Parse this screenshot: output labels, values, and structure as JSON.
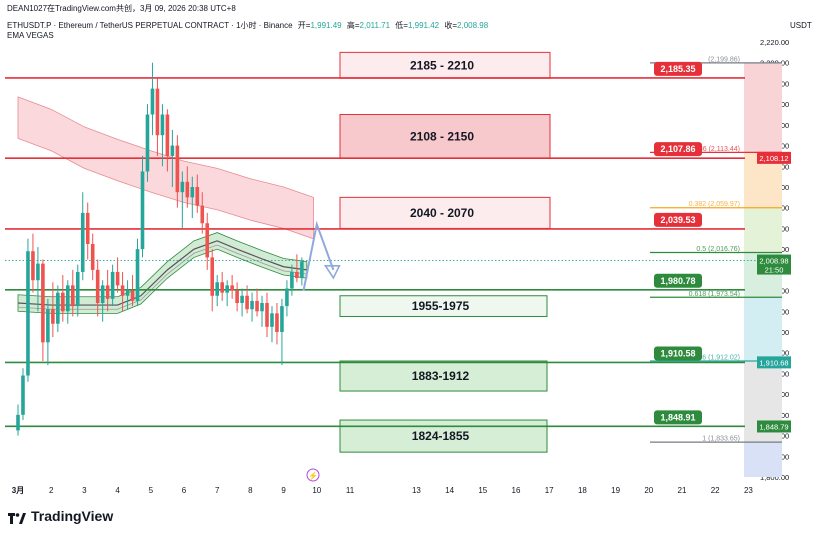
{
  "header": {
    "byline": "DEAN1027在TradingView.com共创，3月 09, 2026 20:38 UTC+8",
    "symbol": "ETHUSDT.P · Ethereum / TetherUS PERPETUAL CONTRACT · 1小时 · Binance",
    "ohlc": [
      {
        "label": "开=",
        "value": "1,991.49"
      },
      {
        "label": "高=",
        "value": "2,011.71"
      },
      {
        "label": "低=",
        "value": "1,991.42"
      },
      {
        "label": "收=",
        "value": "2,008.98"
      }
    ],
    "indicator": "EMA VEGAS"
  },
  "footer": {
    "brand": "TradingView"
  },
  "colors": {
    "red": "#e5303a",
    "green": "#2e8b3d",
    "up": "#26a69a",
    "down": "#ef5350",
    "red_zone_fill": "#fde2e4",
    "green_zone_fill": "#eaf6ea",
    "arrow": "#8fa9dd"
  },
  "chart_data": {
    "type": "candlestick",
    "currency": "USDT",
    "ylim": [
      1800,
      2220
    ],
    "y_ticks": [
      "2,220.00",
      "2,200.00",
      "2,180.00",
      "2,160.00",
      "2,140.00",
      "2,120.00",
      "2,100.00",
      "2,080.00",
      "2,060.00",
      "2,040.00",
      "2,020.00",
      "2,000.00",
      "1,980.00",
      "1,960.00",
      "1,940.00",
      "1,920.00",
      "1,900.00",
      "1,880.00",
      "1,860.00",
      "1,840.00",
      "1,820.00",
      "1,800.00"
    ],
    "x_ticks": [
      {
        "label": "3月",
        "day": 1
      },
      {
        "label": "2",
        "day": 2
      },
      {
        "label": "3",
        "day": 3
      },
      {
        "label": "4",
        "day": 4
      },
      {
        "label": "5",
        "day": 5
      },
      {
        "label": "6",
        "day": 6
      },
      {
        "label": "7",
        "day": 7
      },
      {
        "label": "8",
        "day": 8
      },
      {
        "label": "9",
        "day": 9
      },
      {
        "label": "10",
        "day": 10
      },
      {
        "label": "11",
        "day": 11
      },
      {
        "label": "13",
        "day": 13
      },
      {
        "label": "14",
        "day": 14
      },
      {
        "label": "15",
        "day": 15
      },
      {
        "label": "16",
        "day": 16
      },
      {
        "label": "17",
        "day": 17
      },
      {
        "label": "18",
        "day": 18
      },
      {
        "label": "19",
        "day": 19
      },
      {
        "label": "20",
        "day": 20
      },
      {
        "label": "21",
        "day": 21
      },
      {
        "label": "22",
        "day": 22
      },
      {
        "label": "23",
        "day": 23
      }
    ],
    "price_lines": [
      {
        "value": 2185.35,
        "label": "2,185.35",
        "color": "red"
      },
      {
        "value": 2107.86,
        "label": "2,107.86",
        "color": "red"
      },
      {
        "value": 2039.53,
        "label": "2,039.53",
        "color": "red"
      },
      {
        "value": 1980.78,
        "label": "1,980.78",
        "color": "green"
      },
      {
        "value": 1910.58,
        "label": "1,910.58",
        "color": "green"
      },
      {
        "value": 1848.91,
        "label": "1,848.91",
        "color": "green"
      }
    ],
    "zones": [
      {
        "label": "2185 - 2210",
        "low": 2185,
        "high": 2210,
        "kind": "resistance",
        "strong": false
      },
      {
        "label": "2108 - 2150",
        "low": 2108,
        "high": 2150,
        "kind": "resistance",
        "strong": true
      },
      {
        "label": "2040 - 2070",
        "low": 2040,
        "high": 2070,
        "kind": "resistance",
        "strong": false
      },
      {
        "label": "1955-1975",
        "low": 1955,
        "high": 1975,
        "kind": "support",
        "strong": false
      },
      {
        "label": "1883-1912",
        "low": 1883,
        "high": 1912,
        "kind": "support",
        "strong": true
      },
      {
        "label": "1824-1855",
        "low": 1824,
        "high": 1855,
        "kind": "support",
        "strong": true
      }
    ],
    "fib_levels": [
      {
        "label": "(2,199.86)",
        "value": 2199.86,
        "color": "#787b86"
      },
      {
        "label": "0.236 (2,113.44)",
        "value": 2113.44,
        "color": "#e5303a"
      },
      {
        "label": "0.382 (2,059.97)",
        "value": 2059.97,
        "color": "#f5a623"
      },
      {
        "label": "0.5 (2,016.76)",
        "value": 2016.76,
        "color": "#2e8b3d"
      },
      {
        "label": "0.618 (1,973.54)",
        "value": 1973.54,
        "color": "#2e8b3d"
      },
      {
        "label": "0.786 (1,912.02)",
        "value": 1912.02,
        "color": "#26a69a"
      },
      {
        "label": "1 (1,833.65)",
        "value": 1833.65,
        "color": "#787b86"
      }
    ],
    "right_tags": [
      {
        "label": "2,108.12",
        "value": 2108.12,
        "color": "#e5303a"
      },
      {
        "label": "2,008.98",
        "value": 2008.98,
        "color": "#2e8b3d",
        "sub": "21:50"
      },
      {
        "label": "1,910.68",
        "value": 1910.68,
        "color": "#26a69a"
      },
      {
        "label": "1,848.79",
        "value": 1848.79,
        "color": "#2e8b3d"
      }
    ],
    "last_price": 2008.98,
    "candles": [
      [
        1.0,
        1845,
        1870,
        1840,
        1860
      ],
      [
        1.15,
        1860,
        1905,
        1855,
        1898
      ],
      [
        1.3,
        1898,
        2030,
        1892,
        2018
      ],
      [
        1.45,
        2018,
        2035,
        1978,
        1990
      ],
      [
        1.6,
        1990,
        2022,
        1960,
        2006
      ],
      [
        1.75,
        2006,
        2010,
        1912,
        1930
      ],
      [
        1.9,
        1930,
        1972,
        1908,
        1962
      ],
      [
        2.05,
        1962,
        1988,
        1935,
        1948
      ],
      [
        2.2,
        1948,
        1985,
        1940,
        1978
      ],
      [
        2.35,
        1978,
        1995,
        1950,
        1960
      ],
      [
        2.5,
        1960,
        1990,
        1948,
        1985
      ],
      [
        2.65,
        1985,
        2000,
        1955,
        1965
      ],
      [
        2.8,
        1965,
        2005,
        1955,
        1998
      ],
      [
        2.95,
        1998,
        2075,
        1990,
        2055
      ],
      [
        3.1,
        2055,
        2065,
        2010,
        2025
      ],
      [
        3.25,
        2025,
        2035,
        1990,
        2000
      ],
      [
        3.4,
        2000,
        2010,
        1955,
        1968
      ],
      [
        3.55,
        1968,
        1990,
        1950,
        1985
      ],
      [
        3.7,
        1985,
        2000,
        1960,
        1972
      ],
      [
        3.85,
        1972,
        2005,
        1965,
        1998
      ],
      [
        4.0,
        1998,
        2012,
        1978,
        1985
      ],
      [
        4.15,
        1985,
        1998,
        1960,
        1975
      ],
      [
        4.3,
        1975,
        1990,
        1962,
        1980
      ],
      [
        4.45,
        1980,
        1995,
        1965,
        1970
      ],
      [
        4.6,
        1970,
        2030,
        1965,
        2020
      ],
      [
        4.75,
        2020,
        2110,
        2012,
        2095
      ],
      [
        4.9,
        2095,
        2160,
        2085,
        2150
      ],
      [
        5.05,
        2150,
        2200,
        2130,
        2175
      ],
      [
        5.2,
        2175,
        2185,
        2110,
        2130
      ],
      [
        5.35,
        2130,
        2160,
        2100,
        2150
      ],
      [
        5.5,
        2150,
        2155,
        2095,
        2110
      ],
      [
        5.65,
        2110,
        2135,
        2080,
        2120
      ],
      [
        5.8,
        2120,
        2130,
        2060,
        2075
      ],
      [
        5.95,
        2075,
        2095,
        2040,
        2085
      ],
      [
        6.1,
        2085,
        2100,
        2060,
        2070
      ],
      [
        6.25,
        2070,
        2090,
        2050,
        2080
      ],
      [
        6.4,
        2080,
        2092,
        2055,
        2062
      ],
      [
        6.55,
        2062,
        2075,
        2035,
        2045
      ],
      [
        6.7,
        2045,
        2055,
        2000,
        2012
      ],
      [
        6.85,
        2012,
        2020,
        1960,
        1975
      ],
      [
        7.0,
        1975,
        1995,
        1965,
        1988
      ],
      [
        7.15,
        1988,
        1998,
        1970,
        1978
      ],
      [
        7.3,
        1978,
        1990,
        1965,
        1985
      ],
      [
        7.45,
        1985,
        1995,
        1972,
        1980
      ],
      [
        7.6,
        1980,
        1988,
        1960,
        1968
      ],
      [
        7.75,
        1968,
        1982,
        1955,
        1975
      ],
      [
        7.9,
        1975,
        1985,
        1958,
        1962
      ],
      [
        8.05,
        1962,
        1978,
        1950,
        1970
      ],
      [
        8.2,
        1970,
        1982,
        1955,
        1960
      ],
      [
        8.35,
        1960,
        1975,
        1945,
        1968
      ],
      [
        8.5,
        1968,
        1978,
        1935,
        1945
      ],
      [
        8.65,
        1945,
        1965,
        1930,
        1958
      ],
      [
        8.8,
        1958,
        1968,
        1928,
        1940
      ],
      [
        8.95,
        1940,
        1972,
        1908,
        1965
      ],
      [
        9.1,
        1965,
        1990,
        1955,
        1982
      ],
      [
        9.25,
        1982,
        2005,
        1975,
        1998
      ],
      [
        9.4,
        1998,
        2015,
        1988,
        1992
      ],
      [
        9.55,
        1992,
        2012,
        1985,
        2008
      ]
    ],
    "ema_ribbon": [
      [
        1.0,
        1968
      ],
      [
        2.0,
        1966
      ],
      [
        3.0,
        1966
      ],
      [
        4.0,
        1966
      ],
      [
        4.7,
        1975
      ],
      [
        5.5,
        2000
      ],
      [
        6.3,
        2020
      ],
      [
        7.0,
        2028
      ],
      [
        7.6,
        2020
      ],
      [
        8.4,
        2010
      ],
      [
        9.0,
        2003
      ],
      [
        9.7,
        2000
      ]
    ],
    "ema_tunnel": [
      [
        1.0,
        2147
      ],
      [
        2.0,
        2135
      ],
      [
        3.0,
        2118
      ],
      [
        4.0,
        2106
      ],
      [
        5.0,
        2095
      ],
      [
        6.0,
        2085
      ],
      [
        7.0,
        2078
      ],
      [
        8.0,
        2068
      ],
      [
        9.0,
        2060
      ],
      [
        9.9,
        2050
      ]
    ],
    "forecast_path": [
      [
        9.6,
        1980
      ],
      [
        10.0,
        2044
      ],
      [
        10.5,
        2000
      ],
      [
        11.0,
        2012
      ]
    ]
  }
}
